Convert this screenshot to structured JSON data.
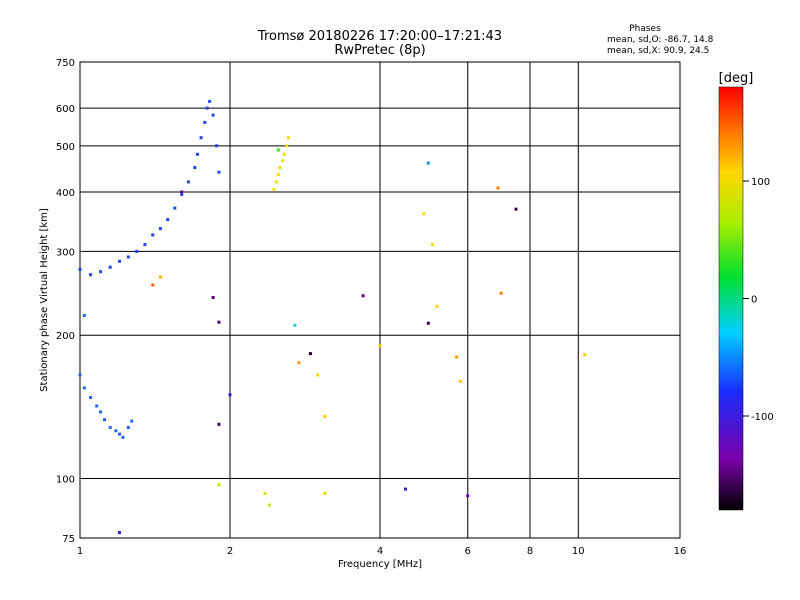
{
  "chart_data": {
    "type": "scatter",
    "title": "Tromsø 20180226 17:20:00–17:21:43",
    "subtitle": "RwPretec (8p)",
    "xlabel": "Frequency [MHz]",
    "ylabel": "Stationary phase Virtual Height [km]",
    "x_scale": "log",
    "y_scale": "log",
    "xlim": [
      1,
      16
    ],
    "ylim": [
      75,
      750
    ],
    "x_ticks": [
      "1",
      "2",
      "4",
      "6",
      "8",
      "10",
      "16"
    ],
    "y_ticks": [
      "75",
      "100",
      "200",
      "300",
      "400",
      "500",
      "600",
      "750"
    ],
    "grid": true,
    "stats": {
      "title": "Phases",
      "line_o": "mean, sd,O: -86.7, 14.8",
      "line_x": "mean, sd,X:  90.9, 24.5"
    },
    "colorbar": {
      "label": "[deg]",
      "range": [
        -180,
        180
      ],
      "ticks": [
        "100",
        "0",
        "-100"
      ],
      "colormap": "rainbow (black-purple-blue-cyan-green-yellow-red)"
    },
    "series": [
      {
        "role": "O-mode F-layer trace",
        "color": "#2244ee",
        "x": [
          1.0,
          1.05,
          1.1,
          1.15,
          1.2,
          1.25,
          1.3,
          1.35,
          1.4,
          1.45,
          1.5,
          1.55,
          1.6,
          1.65,
          1.7,
          1.72,
          1.75,
          1.78,
          1.8,
          1.82,
          1.85,
          1.88,
          1.9
        ],
        "y": [
          275,
          268,
          272,
          278,
          286,
          292,
          300,
          310,
          325,
          335,
          350,
          370,
          395,
          420,
          450,
          480,
          520,
          560,
          600,
          620,
          580,
          500,
          440
        ]
      },
      {
        "role": "E-layer trace",
        "color": "#2266ff",
        "x": [
          1.0,
          1.02,
          1.05,
          1.08,
          1.1,
          1.12,
          1.15,
          1.18,
          1.2,
          1.22,
          1.25,
          1.27
        ],
        "y": [
          165,
          155,
          148,
          142,
          138,
          133,
          128,
          126,
          124,
          122,
          128,
          132
        ]
      },
      {
        "role": "X-mode trace",
        "color": "#eedd00",
        "x": [
          2.45,
          2.48,
          2.5,
          2.52,
          2.55,
          2.57,
          2.6,
          2.62
        ],
        "y": [
          405,
          420,
          435,
          450,
          465,
          480,
          500,
          520
        ]
      },
      {
        "role": "scattered echoes",
        "color": "mixed",
        "x": [
          1.02,
          1.4,
          1.45,
          1.6,
          1.85,
          1.9,
          1.9,
          2.0,
          2.5,
          2.7,
          2.75,
          2.9,
          3.0,
          3.1,
          3.7,
          4.0,
          4.5,
          4.9,
          5.0,
          5.0,
          5.1,
          5.2,
          5.7,
          5.8,
          6.0,
          6.9,
          7.0,
          7.5,
          10.3,
          1.9,
          2.35,
          2.4,
          3.1,
          1.2
        ],
        "y": [
          220,
          255,
          265,
          400,
          240,
          213,
          130,
          150,
          490,
          210,
          175,
          183,
          165,
          135,
          242,
          190,
          95,
          360,
          212,
          460,
          310,
          230,
          180,
          160,
          92,
          408,
          245,
          368,
          182,
          97,
          93,
          88,
          93,
          77
        ],
        "hues_deg": [
          -60,
          150,
          120,
          -140,
          -150,
          -150,
          -160,
          -100,
          30,
          -20,
          130,
          -170,
          100,
          110,
          -150,
          110,
          -100,
          100,
          -160,
          -50,
          100,
          110,
          130,
          110,
          -120,
          140,
          140,
          -160,
          110,
          80,
          90,
          80,
          90,
          -110
        ]
      }
    ]
  }
}
